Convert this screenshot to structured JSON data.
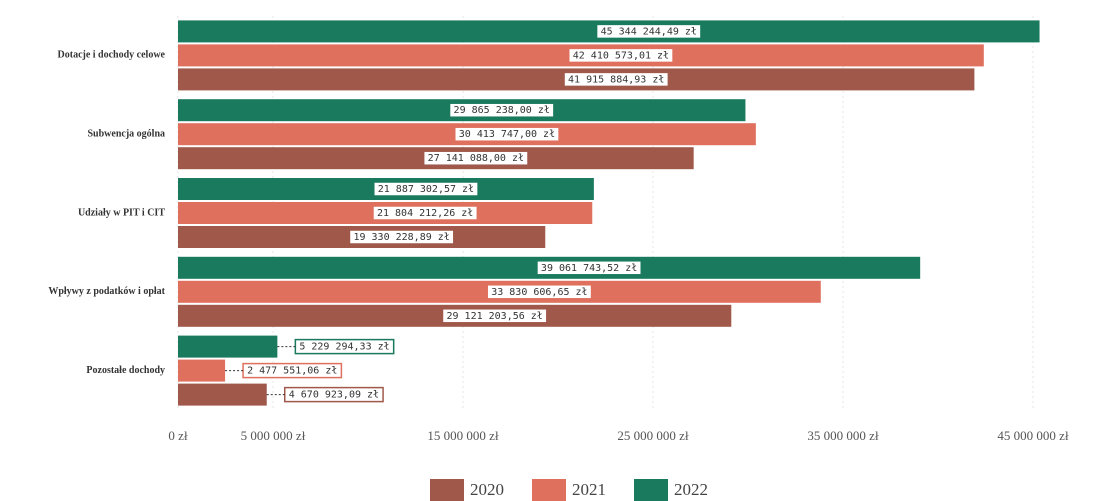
{
  "chart_data": {
    "type": "bar",
    "orientation": "horizontal",
    "categories": [
      "Dotacje i dochody celowe",
      "Subwencja ogólna",
      "Udziały w PIT i CIT",
      "Wpływy z podatków i opłat",
      "Pozostałe dochody"
    ],
    "series": [
      {
        "name": "2020",
        "color": "#a0584a",
        "values": [
          41915884.93,
          27141088.0,
          19330228.89,
          29121203.56,
          4670923.09
        ],
        "value_labels": [
          "41 915 884,93 zł",
          "27 141 088,00 zł",
          "19 330 228,89 zł",
          "29 121 203,56 zł",
          "4 670 923,09 zł"
        ]
      },
      {
        "name": "2021",
        "color": "#e0705e",
        "values": [
          42410573.01,
          30413747.0,
          21804212.26,
          33830606.65,
          2477551.06
        ],
        "value_labels": [
          "42 410 573,01 zł",
          "30 413 747,00 zł",
          "21 804 212,26 zł",
          "33 830 606,65 zł",
          "2 477 551,06 zł"
        ]
      },
      {
        "name": "2022",
        "color": "#1a7a5e",
        "values": [
          45344244.49,
          29865238.0,
          21887302.57,
          39061743.52,
          5229294.33
        ],
        "value_labels": [
          "45 344 244,49 zł",
          "29 865 238,00 zł",
          "21 887 302,57 zł",
          "39 061 743,52 zł",
          "5 229 294,33 zł"
        ]
      }
    ],
    "xlim": [
      0,
      48000000
    ],
    "xticks": [
      {
        "value": 0,
        "label": "0 zł"
      },
      {
        "value": 5000000,
        "label": "5 000 000 zł"
      },
      {
        "value": 15000000,
        "label": "15 000 000 zł"
      },
      {
        "value": 25000000,
        "label": "25 000 000 zł"
      },
      {
        "value": 35000000,
        "label": "35 000 000 zł"
      },
      {
        "value": 45000000,
        "label": "45 000 000 zł"
      }
    ],
    "grid": true,
    "legend": "bottom"
  }
}
